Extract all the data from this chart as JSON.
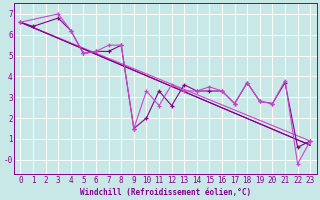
{
  "background_color": "#c8e8e8",
  "grid_color": "#ffffff",
  "line_color": "#880088",
  "line_color2": "#cc44cc",
  "xlabel": "Windchill (Refroidissement éolien,°C)",
  "ylim": [
    -0.7,
    7.5
  ],
  "xlim": [
    -0.5,
    23.5
  ],
  "yticks": [
    0,
    1,
    2,
    3,
    4,
    5,
    6,
    7
  ],
  "xticks": [
    0,
    1,
    2,
    3,
    4,
    5,
    6,
    7,
    8,
    9,
    10,
    11,
    12,
    13,
    14,
    15,
    16,
    17,
    18,
    19,
    20,
    21,
    22,
    23
  ],
  "series1_x": [
    0,
    1,
    3,
    4,
    5,
    6,
    7,
    8,
    9,
    10,
    11,
    12,
    13,
    14,
    15,
    16,
    17,
    18,
    19,
    20,
    21,
    22,
    23
  ],
  "series1_y": [
    6.6,
    6.4,
    6.8,
    6.2,
    5.1,
    5.2,
    5.2,
    5.5,
    1.5,
    2.0,
    3.3,
    2.6,
    3.6,
    3.3,
    3.3,
    3.3,
    2.7,
    3.7,
    2.8,
    2.7,
    3.7,
    0.6,
    0.9
  ],
  "series2_x": [
    0,
    3,
    4,
    5,
    6,
    7,
    8,
    9,
    10,
    11,
    12,
    13,
    14,
    15,
    16,
    17,
    18,
    19,
    20,
    21,
    22,
    23
  ],
  "series2_y": [
    6.6,
    7.0,
    6.2,
    5.1,
    5.2,
    5.5,
    5.5,
    1.5,
    3.3,
    2.6,
    3.6,
    3.3,
    3.3,
    3.5,
    3.3,
    2.7,
    3.7,
    2.8,
    2.7,
    3.8,
    -0.2,
    0.9
  ],
  "trend1_x": [
    0,
    23
  ],
  "trend1_y": [
    6.6,
    0.7
  ],
  "trend2_x": [
    0,
    23
  ],
  "trend2_y": [
    6.6,
    0.9
  ],
  "trend3_x": [
    0,
    23
  ],
  "trend3_y": [
    6.6,
    0.7
  ]
}
